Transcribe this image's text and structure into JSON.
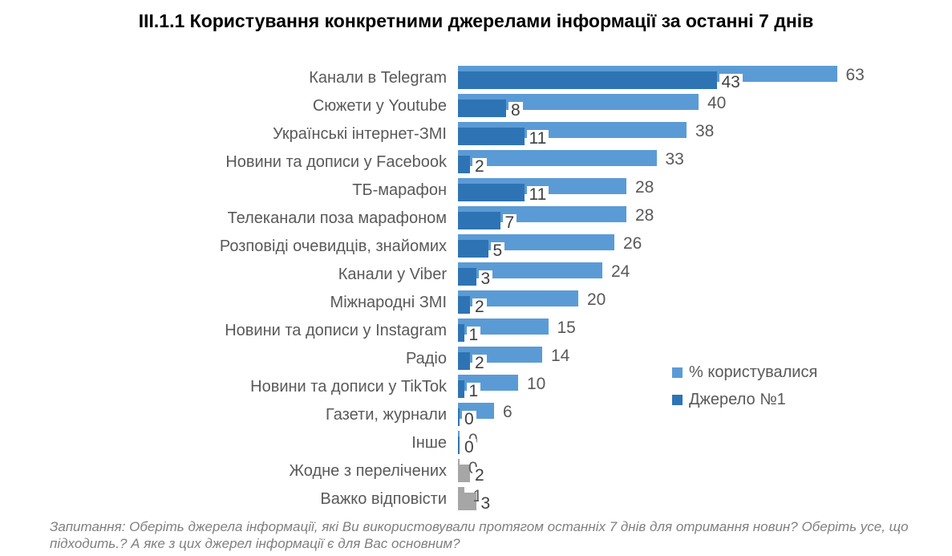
{
  "title": "III.1.1 Користування конкретними джерелами інформації за останні 7 днів",
  "legend": [
    {
      "label": "% користувалися",
      "color": "#5B9BD5"
    },
    {
      "label": "Джерело №1",
      "color": "#2E74B5"
    }
  ],
  "footnote": "Запитання: Оберіть джерела інформації, які Ви використовували протягом останніх 7 днів для отримання новин? Оберіть усе, що підходить.? А яке з цих джерел інформації є для Вас основним?",
  "colors": {
    "used_bar": "#5B9BD5",
    "primary_bar": "#2E74B5",
    "muted_bar": "#A6A6A6",
    "value_label": "#595959",
    "category_label": "#595959",
    "title_text": "#000000",
    "footnote_text": "#7F7F7F"
  },
  "chart_data": {
    "type": "bar",
    "orientation": "horizontal",
    "title": "III.1.1 Користування конкретними джерелами інформації за останні 7 днів",
    "categories": [
      "Канали в Telegram",
      "Сюжети у Youtube",
      "Українські інтернет-ЗМІ",
      "Новини та дописи у Facebook",
      "ТБ-марафон",
      "Телеканали поза марафоном",
      "Розповіді очевидців, знайомих",
      "Канали у Viber",
      "Міжнародні ЗМІ",
      "Новини та дописи у Instagram",
      "Радіо",
      "Новини та дописи у TikTok",
      "Газети, журнали",
      "Інше",
      "Жодне з перелічених",
      "Важко відповісти"
    ],
    "series": [
      {
        "name": "% користувалися",
        "values": [
          63,
          40,
          38,
          33,
          28,
          28,
          26,
          24,
          20,
          15,
          14,
          10,
          6,
          0,
          0,
          1
        ]
      },
      {
        "name": "Джерело №1",
        "values": [
          43,
          8,
          11,
          2,
          11,
          7,
          5,
          3,
          2,
          1,
          2,
          1,
          0,
          0,
          2,
          3
        ]
      }
    ],
    "gray_categories": [
      "Жодне з перелічених",
      "Важко відповісти"
    ],
    "xlim": [
      0,
      67
    ],
    "grid": false,
    "axes_visible": false,
    "value_labels": true,
    "legend_position": "right-middle"
  }
}
